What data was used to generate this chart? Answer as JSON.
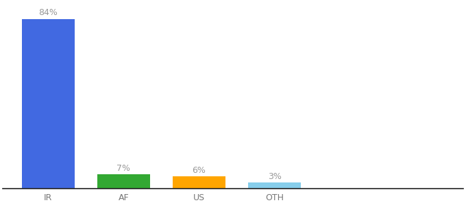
{
  "categories": [
    "IR",
    "AF",
    "US",
    "OTH"
  ],
  "values": [
    84,
    7,
    6,
    3
  ],
  "bar_colors": [
    "#4169e1",
    "#32a832",
    "#ffa500",
    "#87ceeb"
  ],
  "labels": [
    "84%",
    "7%",
    "6%",
    "3%"
  ],
  "title": "",
  "label_fontsize": 9,
  "tick_fontsize": 9,
  "ylim": [
    0,
    92
  ],
  "background_color": "#ffffff",
  "label_color": "#999999",
  "bar_width": 0.7
}
